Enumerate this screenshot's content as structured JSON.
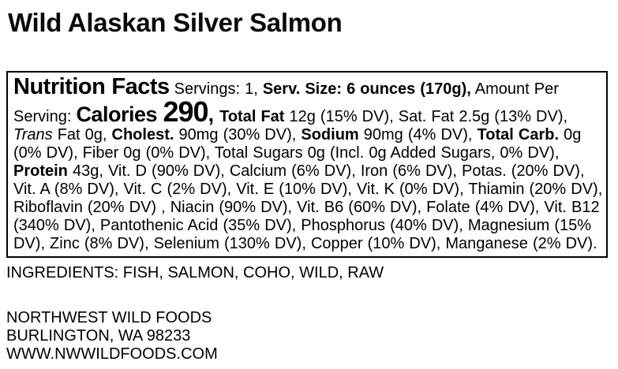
{
  "page": {
    "title": "Wild Alaskan Silver Salmon"
  },
  "colors": {
    "text": "#000000",
    "background": "#ffffff",
    "label_border": "#000000"
  },
  "label": {
    "segments": [
      {
        "style": "nf-title",
        "text": "Nutrition Facts"
      },
      {
        "style": "normal",
        "text": " Servings: 1, "
      },
      {
        "style": "bold",
        "text": "Serv. Size: 6 ounces (170g),"
      },
      {
        "style": "normal",
        "text": " Amount Per Serving: "
      },
      {
        "style": "calories-label",
        "text": "Calories "
      },
      {
        "style": "calories-value",
        "text": "290"
      },
      {
        "style": "calories-label",
        "text": ", "
      },
      {
        "style": "bold",
        "text": "Total Fat"
      },
      {
        "style": "normal",
        "text": " 12g (15% DV), Sat. Fat 2.5g (13% DV), "
      },
      {
        "style": "italic",
        "text": "Trans"
      },
      {
        "style": "normal",
        "text": " Fat 0g, "
      },
      {
        "style": "bold",
        "text": "Cholest."
      },
      {
        "style": "normal",
        "text": " 90mg (30% DV), "
      },
      {
        "style": "bold",
        "text": "Sodium"
      },
      {
        "style": "normal",
        "text": " 90mg (4% DV), "
      },
      {
        "style": "bold",
        "text": "Total Carb."
      },
      {
        "style": "normal",
        "text": " 0g (0% DV), Fiber 0g (0% DV), Total Sugars 0g (Incl. 0g Added Sugars, 0% DV), "
      },
      {
        "style": "bold",
        "text": "Protein"
      },
      {
        "style": "normal",
        "text": " 43g, Vit. D (90% DV), Calcium (6% DV), Iron (6% DV), Potas. (20% DV), Vit. A (8% DV), Vit. C (2% DV), Vit. E (10% DV), Vit. K (0% DV), Thiamin (20% DV), Riboflavin (20% DV) , Niacin (90% DV), Vit. B6 (60% DV), Folate (4% DV), Vit. B12 (340% DV), Pantothenic Acid (35% DV), Phosphorus (40% DV), Magnesium (15% DV), Zinc (8% DV), Selenium (130% DV), Copper (10% DV), Manganese (2% DV)."
      }
    ]
  },
  "ingredients": {
    "text": "INGREDIENTS: FISH, SALMON, COHO, WILD, RAW"
  },
  "footer": {
    "company": "NORTHWEST WILD FOODS",
    "address": "BURLINGTON, WA 98233",
    "website": "WWW.NWWILDFOODS.COM"
  }
}
